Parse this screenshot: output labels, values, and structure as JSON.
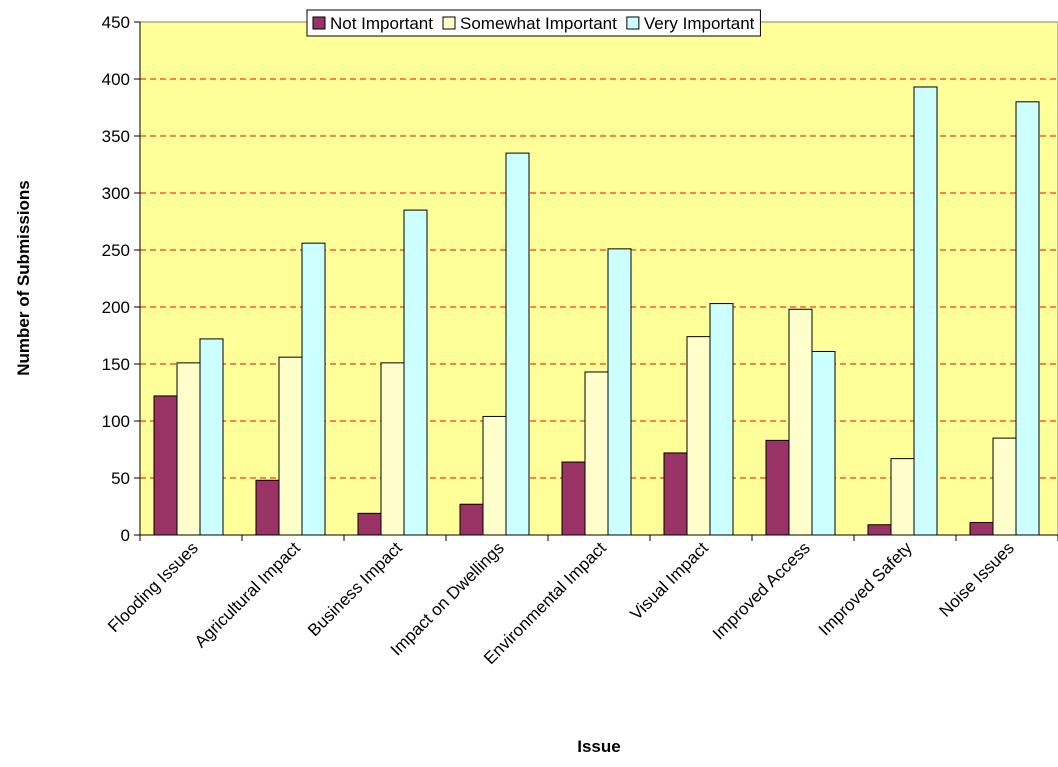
{
  "chart_data": {
    "type": "bar",
    "xlabel": "Issue",
    "ylabel": "Number of Submissions",
    "ylim": [
      0,
      450
    ],
    "yticks": [
      0,
      50,
      100,
      150,
      200,
      250,
      300,
      350,
      400,
      450
    ],
    "grid": true,
    "legend_position": "top-center",
    "categories": [
      "Flooding Issues",
      "Agricultural Impact",
      "Business Impact",
      "Impact on Dwellings",
      "Environmental Impact",
      "Visual Impact",
      "Improved Access",
      "Improved Safety",
      "Noise Issues"
    ],
    "series": [
      {
        "name": "Not Important",
        "color": "#993366",
        "values": [
          122,
          48,
          19,
          27,
          64,
          72,
          83,
          9,
          11
        ]
      },
      {
        "name": "Somewhat Important",
        "color": "#ffffcc",
        "values": [
          151,
          156,
          151,
          104,
          143,
          174,
          198,
          67,
          85
        ]
      },
      {
        "name": "Very Important",
        "color": "#ccffff",
        "values": [
          172,
          256,
          285,
          335,
          251,
          203,
          161,
          393,
          380
        ]
      }
    ],
    "colors": {
      "plot_background": "#ffff99",
      "grid_line": "#ff0000"
    }
  }
}
